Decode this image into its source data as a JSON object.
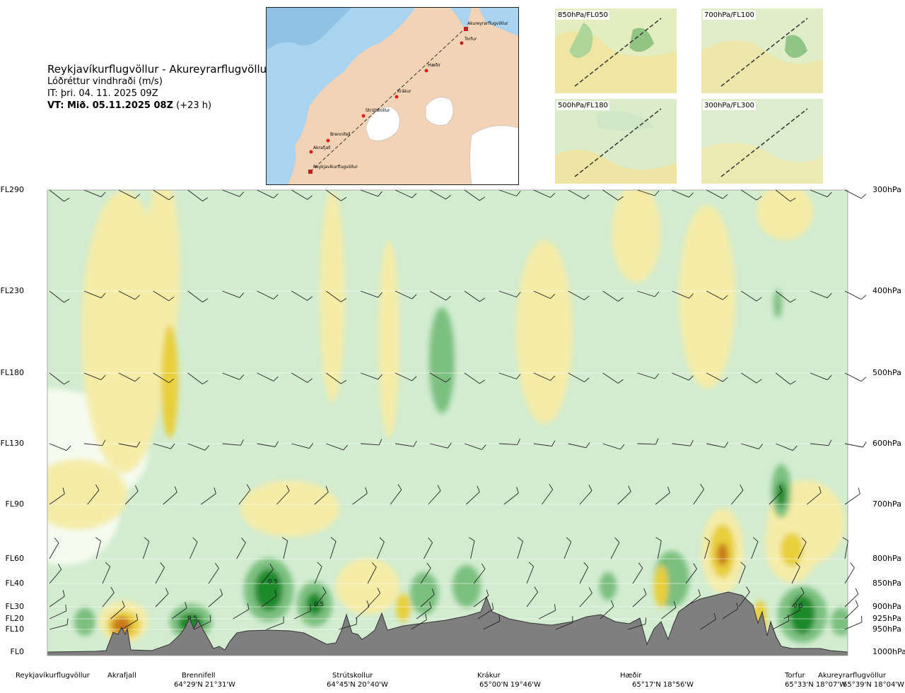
{
  "header": {
    "route": "Reykjavíkurflugvöllur - Akureyrarflugvöllur",
    "parameter": "Lóðréttur vindhraði (m/s)",
    "issue_time": "IT: þri. 04. 11. 2025 09Z",
    "valid_time": "VT: Mið. 05.11.2025 08Z",
    "lead": "(+23 h)"
  },
  "map": {
    "points": [
      "Akureyrarflugvöllur",
      "Torfur",
      "Hæðir",
      "Krákur",
      "Strútskollur",
      "Brennifell",
      "Akrafjall",
      "Reykjavíkurflugvöllur"
    ],
    "colors": {
      "sea": "#a9d3ee",
      "land": "#f2d3b5",
      "glacier": "#ffffff",
      "route": "#333333",
      "point": "#e02020"
    }
  },
  "thumbnails": [
    {
      "label": "850hPa/FL050"
    },
    {
      "label": "700hPa/FL100"
    },
    {
      "label": "500hPa/FL180"
    },
    {
      "label": "300hPa/FL300"
    }
  ],
  "chart_data": {
    "type": "heatmap",
    "title": "Reykjavíkurflugvöllur - Akureyrarflugvöllur",
    "variable": "Lóðréttur vindhraði (m/s)",
    "flight_levels": [
      "FL290",
      "FL230",
      "FL180",
      "FL130",
      "FL90",
      "FL60",
      "FL40",
      "FL30",
      "FL20",
      "FL10",
      "FL0"
    ],
    "pressure_levels": [
      "300hPa",
      "400hPa",
      "500hPa",
      "600hPa",
      "700hPa",
      "800hPa",
      "850hPa",
      "900hPa",
      "925hPa",
      "950hPa",
      "1000hPa"
    ],
    "pressure_values_hpa": [
      300,
      400,
      500,
      600,
      700,
      800,
      850,
      900,
      925,
      950,
      1000
    ],
    "contour_labels": [
      "0.5",
      "0.5",
      "0.5",
      "0.5"
    ],
    "locations": [
      {
        "name": "Reykjavíkurflugvöllur",
        "coord": ""
      },
      {
        "name": "Akrafjall",
        "coord": ""
      },
      {
        "name": "Brennifell",
        "coord": "64°29'N 21°31'W"
      },
      {
        "name": "Strútskollur",
        "coord": "64°45'N 20°40'W"
      },
      {
        "name": "Krákur",
        "coord": "65°00'N 19°46'W"
      },
      {
        "name": "Hæðir",
        "coord": "65°17'N 18°56'W"
      },
      {
        "name": "Torfur",
        "coord": "65°33'N 18°07'W"
      },
      {
        "name": "Akureyrarflugvöllur",
        "coord": "65°39'N 18°04'W"
      }
    ],
    "color_scale": {
      "updraft_strong": "#1f8a2a",
      "updraft_moderate": "#7cc080",
      "updraft_weak": "#cfe9cc",
      "neutral": "#f5fbef",
      "downdraft_weak": "#f5eca8",
      "downdraft_moderate": "#e8cf3a",
      "downdraft_strong": "#c77a1f",
      "terrain": "#7f7f7f"
    }
  }
}
